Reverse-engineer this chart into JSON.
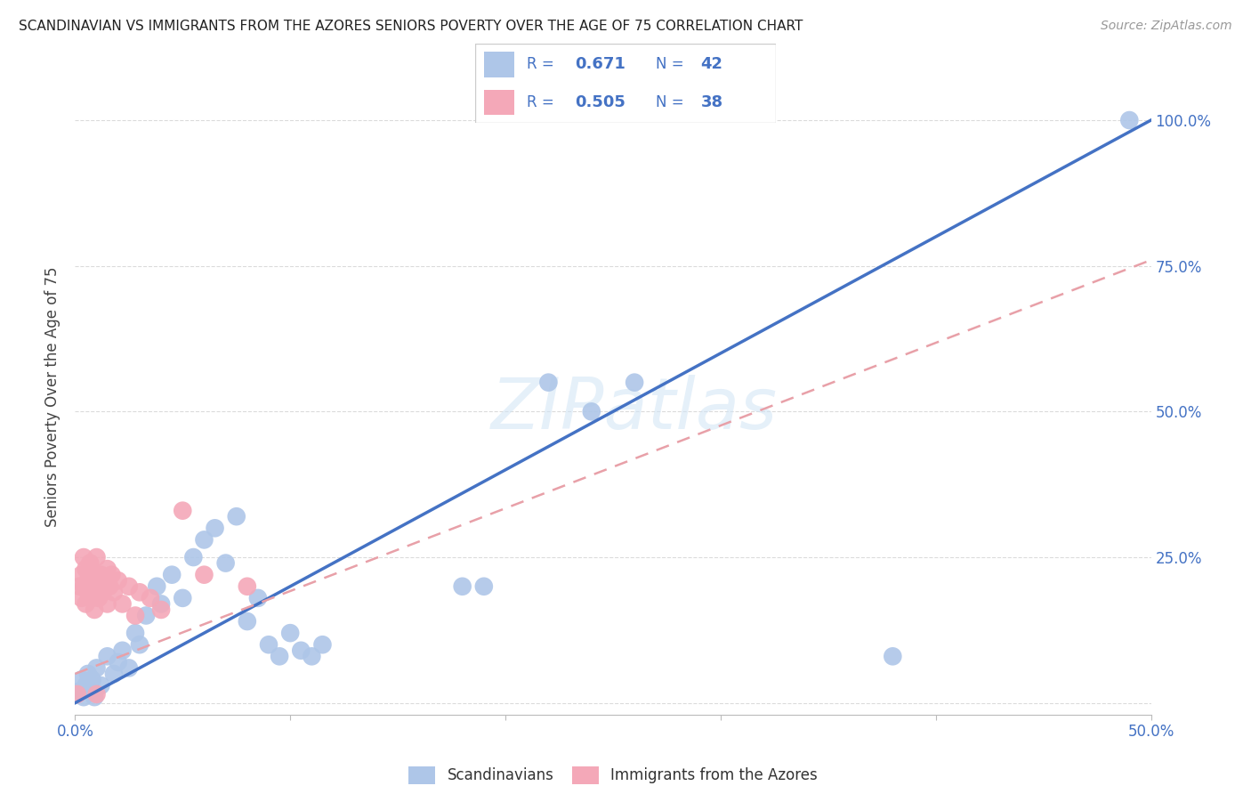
{
  "title": "SCANDINAVIAN VS IMMIGRANTS FROM THE AZORES SENIORS POVERTY OVER THE AGE OF 75 CORRELATION CHART",
  "source": "Source: ZipAtlas.com",
  "ylabel": "Seniors Poverty Over the Age of 75",
  "xlim": [
    0.0,
    0.5
  ],
  "ylim": [
    -0.02,
    1.07
  ],
  "yticks": [
    0.0,
    0.25,
    0.5,
    0.75,
    1.0
  ],
  "ytick_labels": [
    "",
    "25.0%",
    "50.0%",
    "75.0%",
    "100.0%"
  ],
  "xtick_positions": [
    0.0,
    0.1,
    0.2,
    0.3,
    0.4,
    0.5
  ],
  "xtick_labels_visible": [
    "0.0%",
    "",
    "",
    "",
    "",
    "50.0%"
  ],
  "scatter_blue": [
    [
      0.002,
      0.02
    ],
    [
      0.003,
      0.04
    ],
    [
      0.004,
      0.01
    ],
    [
      0.005,
      0.03
    ],
    [
      0.006,
      0.05
    ],
    [
      0.007,
      0.02
    ],
    [
      0.008,
      0.04
    ],
    [
      0.009,
      0.01
    ],
    [
      0.01,
      0.06
    ],
    [
      0.012,
      0.03
    ],
    [
      0.015,
      0.08
    ],
    [
      0.018,
      0.05
    ],
    [
      0.02,
      0.07
    ],
    [
      0.022,
      0.09
    ],
    [
      0.025,
      0.06
    ],
    [
      0.028,
      0.12
    ],
    [
      0.03,
      0.1
    ],
    [
      0.033,
      0.15
    ],
    [
      0.038,
      0.2
    ],
    [
      0.04,
      0.17
    ],
    [
      0.045,
      0.22
    ],
    [
      0.05,
      0.18
    ],
    [
      0.055,
      0.25
    ],
    [
      0.06,
      0.28
    ],
    [
      0.065,
      0.3
    ],
    [
      0.07,
      0.24
    ],
    [
      0.075,
      0.32
    ],
    [
      0.08,
      0.14
    ],
    [
      0.085,
      0.18
    ],
    [
      0.09,
      0.1
    ],
    [
      0.095,
      0.08
    ],
    [
      0.1,
      0.12
    ],
    [
      0.105,
      0.09
    ],
    [
      0.11,
      0.08
    ],
    [
      0.115,
      0.1
    ],
    [
      0.18,
      0.2
    ],
    [
      0.19,
      0.2
    ],
    [
      0.22,
      0.55
    ],
    [
      0.24,
      0.5
    ],
    [
      0.26,
      0.55
    ],
    [
      0.38,
      0.08
    ],
    [
      0.49,
      1.0
    ]
  ],
  "scatter_pink": [
    [
      0.001,
      0.015
    ],
    [
      0.002,
      0.2
    ],
    [
      0.003,
      0.22
    ],
    [
      0.003,
      0.18
    ],
    [
      0.004,
      0.25
    ],
    [
      0.004,
      0.2
    ],
    [
      0.005,
      0.23
    ],
    [
      0.005,
      0.17
    ],
    [
      0.006,
      0.21
    ],
    [
      0.006,
      0.19
    ],
    [
      0.007,
      0.24
    ],
    [
      0.007,
      0.22
    ],
    [
      0.008,
      0.2
    ],
    [
      0.008,
      0.18
    ],
    [
      0.009,
      0.22
    ],
    [
      0.009,
      0.16
    ],
    [
      0.01,
      0.25
    ],
    [
      0.01,
      0.2
    ],
    [
      0.011,
      0.18
    ],
    [
      0.012,
      0.22
    ],
    [
      0.013,
      0.19
    ],
    [
      0.014,
      0.21
    ],
    [
      0.015,
      0.17
    ],
    [
      0.015,
      0.23
    ],
    [
      0.016,
      0.2
    ],
    [
      0.017,
      0.22
    ],
    [
      0.018,
      0.19
    ],
    [
      0.02,
      0.21
    ],
    [
      0.022,
      0.17
    ],
    [
      0.025,
      0.2
    ],
    [
      0.028,
      0.15
    ],
    [
      0.03,
      0.19
    ],
    [
      0.035,
      0.18
    ],
    [
      0.04,
      0.16
    ],
    [
      0.05,
      0.33
    ],
    [
      0.06,
      0.22
    ],
    [
      0.08,
      0.2
    ],
    [
      0.01,
      0.015
    ]
  ],
  "blue_line": {
    "x0": 0.0,
    "y0": 0.0,
    "x1": 0.5,
    "y1": 1.0
  },
  "pink_line": {
    "x0": 0.0,
    "y0": 0.05,
    "x1": 0.5,
    "y1": 0.76
  },
  "blue_line_color": "#4472C4",
  "pink_line_color": "#E8A0A8",
  "blue_scatter_color": "#AEC6E8",
  "pink_scatter_color": "#F4A8B8",
  "watermark": "ZIPatlas",
  "legend_text_color": "#4472C4",
  "background_color": "#FFFFFF",
  "grid_color": "#CCCCCC"
}
